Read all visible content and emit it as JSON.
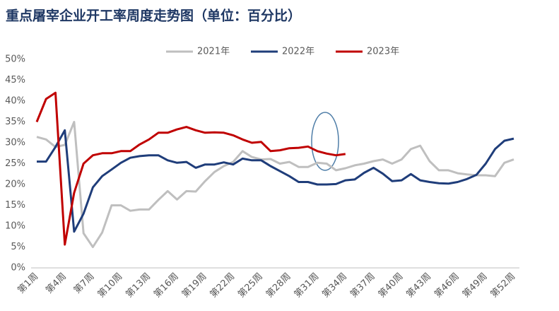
{
  "chart_data": {
    "type": "line",
    "title": "重点屠宰企业开工率周度走势图（单位：百分比）",
    "categories": [
      "第1周",
      null,
      null,
      "第4周",
      null,
      null,
      "第7周",
      null,
      null,
      "第10周",
      null,
      null,
      "第13周",
      null,
      null,
      "第16周",
      null,
      null,
      "第19周",
      null,
      null,
      "第22周",
      null,
      null,
      "第25周",
      null,
      null,
      "第28周",
      null,
      null,
      "第31周",
      null,
      null,
      "第34周",
      null,
      null,
      "第37周",
      null,
      null,
      "第40周",
      null,
      null,
      "第43周",
      null,
      null,
      "第46周",
      null,
      null,
      "第49周",
      null,
      null,
      "第52周"
    ],
    "series": [
      {
        "name": "2021年",
        "color": "#bfbfbf",
        "values": [
          31.4,
          30.8,
          29,
          29.5,
          35,
          8.3,
          5,
          8.5,
          15,
          15,
          13.7,
          14,
          14,
          16.3,
          18.4,
          16.4,
          18.4,
          18.3,
          20.8,
          23,
          24.4,
          25.4,
          28,
          26.6,
          26,
          26.1,
          25,
          25.4,
          24.2,
          24.2,
          25.2,
          25,
          23.4,
          23.9,
          24.6,
          25,
          25.6,
          26,
          25,
          26,
          28.5,
          29.3,
          25.6,
          23.4,
          23.4,
          22.7,
          22.4,
          22.2,
          22.2,
          22,
          25.2,
          26
        ]
      },
      {
        "name": "2022年",
        "color": "#1f3d7a",
        "values": [
          25.5,
          25.5,
          29,
          33,
          8.7,
          13,
          19.3,
          22,
          23.6,
          25.2,
          26.4,
          26.8,
          27,
          27,
          25.8,
          25.2,
          25.4,
          24,
          24.8,
          24.8,
          25.3,
          24.8,
          26.2,
          25.8,
          25.8,
          24.4,
          23.2,
          22,
          20.6,
          20.6,
          20,
          20,
          20.1,
          21,
          21.2,
          22.8,
          24,
          22.6,
          20.8,
          21,
          22.5,
          21,
          20.6,
          20.3,
          20.2,
          20.6,
          21.3,
          22.3,
          25,
          28.5,
          30.5,
          31
        ]
      },
      {
        "name": "2023年",
        "color": "#c00000",
        "values": [
          35,
          40.5,
          42,
          5.6,
          18,
          25,
          27,
          27.5,
          27.5,
          28,
          28,
          29.6,
          30.8,
          32.4,
          32.4,
          33.2,
          33.8,
          33,
          32.4,
          32.5,
          32.4,
          31.8,
          30.8,
          30,
          30.2,
          28,
          28.2,
          28.7,
          28.8,
          29.1,
          28,
          27.4,
          27,
          27.3,
          null,
          null,
          null,
          null,
          null,
          null,
          null,
          null,
          null,
          null,
          null,
          null,
          null,
          null,
          null,
          null,
          null,
          null
        ]
      }
    ],
    "ylim": [
      0,
      50
    ],
    "yticks": [
      {
        "value": 0,
        "label": "0%"
      },
      {
        "value": 5,
        "label": "5%"
      },
      {
        "value": 10,
        "label": "10%"
      },
      {
        "value": 15,
        "label": "15%"
      },
      {
        "value": 20,
        "label": "20%"
      },
      {
        "value": 25,
        "label": "25%"
      },
      {
        "value": 30,
        "label": "30%"
      },
      {
        "value": 35,
        "label": "35%"
      },
      {
        "value": 40,
        "label": "40%"
      },
      {
        "value": 45,
        "label": "45%"
      },
      {
        "value": 50,
        "label": "50%"
      }
    ],
    "grid": false,
    "legend": "top"
  }
}
